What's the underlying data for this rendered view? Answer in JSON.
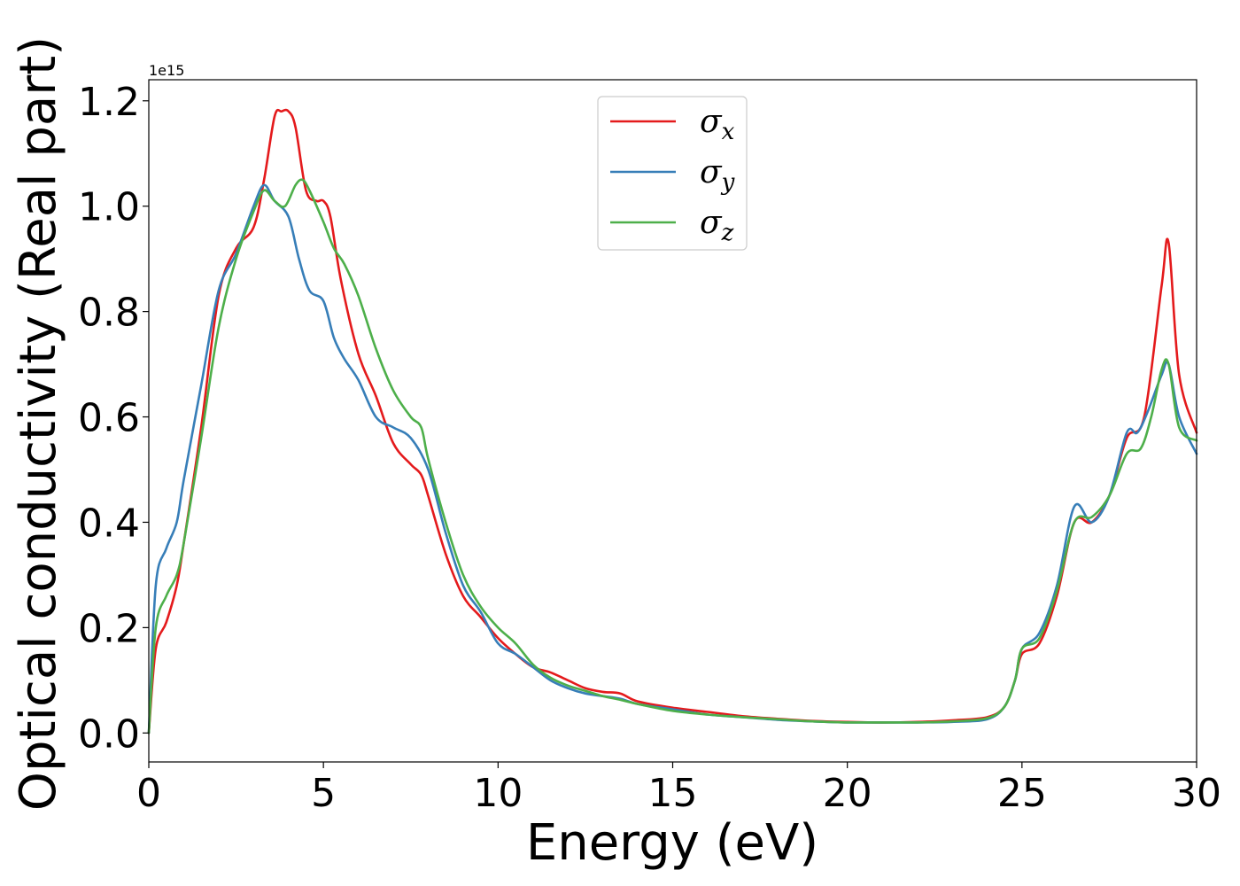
{
  "chart_data": {
    "type": "line",
    "xlabel": "Energy (eV)",
    "ylabel": "Optical conductivity (Real part)",
    "y_offset_label": "1e15",
    "y_scale": 1000000000000000.0,
    "xlim": [
      0,
      30
    ],
    "ylim": [
      -0.055,
      1.24
    ],
    "x_ticks": [
      0,
      5,
      10,
      15,
      20,
      25,
      30
    ],
    "x_tick_labels": [
      "0",
      "5",
      "10",
      "15",
      "20",
      "25",
      "30"
    ],
    "y_ticks": [
      0.0,
      0.2,
      0.4,
      0.6,
      0.8,
      1.0,
      1.2
    ],
    "y_tick_labels": [
      "0.0",
      "0.2",
      "0.4",
      "0.6",
      "0.8",
      "1.0",
      "1.2"
    ],
    "grid": false,
    "legend_position": "top-center",
    "series": [
      {
        "name": "σx",
        "base": "σ",
        "sub": "x",
        "color": "#e41a1c",
        "x": [
          0,
          0.2,
          0.5,
          0.8,
          1.0,
          1.5,
          2.0,
          2.5,
          3.0,
          3.3,
          3.6,
          3.8,
          4.0,
          4.2,
          4.5,
          4.8,
          5.0,
          5.2,
          5.5,
          6.0,
          6.5,
          7.0,
          7.5,
          7.8,
          8.0,
          8.5,
          9.0,
          9.5,
          10.0,
          10.5,
          11.0,
          11.5,
          12.0,
          12.5,
          13.0,
          13.5,
          14.0,
          15.0,
          16.0,
          17.0,
          18.0,
          19.0,
          20.0,
          21.0,
          22.0,
          23.0,
          24.0,
          24.5,
          24.8,
          25.0,
          25.5,
          26.0,
          26.5,
          27.0,
          27.5,
          28.0,
          28.5,
          29.0,
          29.2,
          29.5,
          30.0
        ],
        "y": [
          0.0,
          0.16,
          0.21,
          0.28,
          0.36,
          0.58,
          0.83,
          0.92,
          0.96,
          1.05,
          1.17,
          1.18,
          1.18,
          1.15,
          1.03,
          1.01,
          1.01,
          0.98,
          0.86,
          0.72,
          0.64,
          0.55,
          0.51,
          0.49,
          0.45,
          0.34,
          0.26,
          0.22,
          0.18,
          0.15,
          0.125,
          0.115,
          0.1,
          0.085,
          0.078,
          0.075,
          0.06,
          0.048,
          0.04,
          0.032,
          0.027,
          0.023,
          0.021,
          0.02,
          0.021,
          0.024,
          0.03,
          0.05,
          0.1,
          0.15,
          0.17,
          0.26,
          0.4,
          0.4,
          0.45,
          0.56,
          0.6,
          0.85,
          0.93,
          0.68,
          0.57
        ]
      },
      {
        "name": "σy",
        "base": "σ",
        "sub": "y",
        "color": "#377eb8",
        "x": [
          0,
          0.2,
          0.5,
          0.8,
          1.0,
          1.5,
          2.0,
          2.5,
          3.0,
          3.3,
          3.6,
          4.0,
          4.3,
          4.6,
          5.0,
          5.3,
          5.6,
          6.0,
          6.5,
          7.0,
          7.5,
          8.0,
          8.5,
          9.0,
          9.5,
          10.0,
          10.5,
          11.0,
          11.5,
          12.0,
          12.5,
          13.0,
          13.5,
          14.0,
          15.0,
          16.0,
          17.0,
          18.0,
          19.0,
          20.0,
          21.0,
          22.0,
          23.0,
          24.0,
          24.5,
          24.8,
          25.0,
          25.5,
          26.0,
          26.5,
          27.0,
          27.5,
          28.0,
          28.3,
          28.6,
          29.0,
          29.2,
          29.5,
          30.0
        ],
        "y": [
          0.0,
          0.28,
          0.35,
          0.4,
          0.48,
          0.66,
          0.84,
          0.91,
          1.0,
          1.04,
          1.01,
          0.98,
          0.9,
          0.84,
          0.82,
          0.75,
          0.71,
          0.67,
          0.6,
          0.58,
          0.56,
          0.5,
          0.38,
          0.28,
          0.23,
          0.17,
          0.15,
          0.125,
          0.1,
          0.085,
          0.075,
          0.07,
          0.065,
          0.055,
          0.045,
          0.035,
          0.03,
          0.025,
          0.022,
          0.02,
          0.02,
          0.02,
          0.021,
          0.026,
          0.05,
          0.1,
          0.16,
          0.19,
          0.28,
          0.43,
          0.4,
          0.45,
          0.57,
          0.57,
          0.61,
          0.68,
          0.7,
          0.6,
          0.53
        ]
      },
      {
        "name": "σz",
        "base": "σ",
        "sub": "z",
        "color": "#4daf4a",
        "x": [
          0,
          0.2,
          0.5,
          0.8,
          1.0,
          1.5,
          2.0,
          2.5,
          3.0,
          3.3,
          3.6,
          3.9,
          4.2,
          4.4,
          4.6,
          5.0,
          5.3,
          5.6,
          6.0,
          6.5,
          7.0,
          7.5,
          7.8,
          8.0,
          8.5,
          9.0,
          9.5,
          10.0,
          10.5,
          11.0,
          11.5,
          12.0,
          12.5,
          13.0,
          13.5,
          14.0,
          15.0,
          16.0,
          17.0,
          18.0,
          19.0,
          20.0,
          21.0,
          22.0,
          23.0,
          24.0,
          24.5,
          24.8,
          25.0,
          25.5,
          26.0,
          26.5,
          27.0,
          27.5,
          28.0,
          28.4,
          28.7,
          29.0,
          29.2,
          29.5,
          30.0
        ],
        "y": [
          0.0,
          0.2,
          0.26,
          0.3,
          0.36,
          0.56,
          0.77,
          0.9,
          0.99,
          1.03,
          1.01,
          1.0,
          1.04,
          1.05,
          1.03,
          0.97,
          0.92,
          0.89,
          0.83,
          0.73,
          0.65,
          0.6,
          0.58,
          0.52,
          0.4,
          0.3,
          0.24,
          0.2,
          0.17,
          0.13,
          0.105,
          0.09,
          0.08,
          0.07,
          0.063,
          0.055,
          0.042,
          0.035,
          0.03,
          0.026,
          0.022,
          0.02,
          0.02,
          0.02,
          0.022,
          0.028,
          0.05,
          0.1,
          0.16,
          0.18,
          0.27,
          0.4,
          0.41,
          0.45,
          0.53,
          0.54,
          0.6,
          0.69,
          0.7,
          0.58,
          0.555
        ]
      }
    ]
  }
}
